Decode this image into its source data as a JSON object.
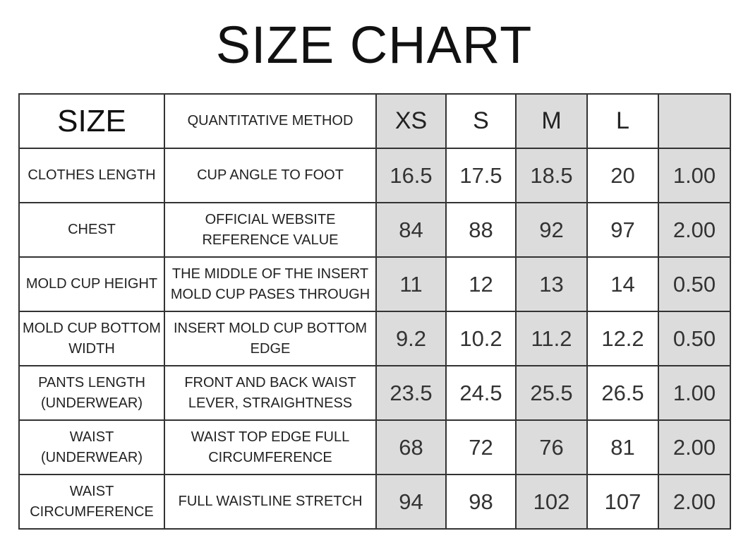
{
  "title": "SIZE CHART",
  "header": {
    "size_label": "SIZE",
    "method_label": "QUANTITATIVE METHOD",
    "sizes": [
      "XS",
      "S",
      "M",
      "L",
      ""
    ]
  },
  "rows": [
    {
      "label": "CLOTHES LENGTH",
      "method": "CUP ANGLE TO FOOT",
      "values": [
        "16.5",
        "17.5",
        "18.5",
        "20",
        "1.00"
      ]
    },
    {
      "label": "CHEST",
      "method": "OFFICIAL WEBSITE REFERENCE VALUE",
      "values": [
        "84",
        "88",
        "92",
        "97",
        "2.00"
      ]
    },
    {
      "label": "MOLD CUP HEIGHT",
      "method": "THE MIDDLE OF THE INSERT MOLD CUP PASES THROUGH",
      "values": [
        "11",
        "12",
        "13",
        "14",
        "0.50"
      ]
    },
    {
      "label": "MOLD CUP BOTTOM WIDTH",
      "method": "INSERT MOLD CUP BOTTOM EDGE",
      "values": [
        "9.2",
        "10.2",
        "11.2",
        "12.2",
        "0.50"
      ]
    },
    {
      "label": "PANTS LENGTH (UNDERWEAR)",
      "method": "FRONT AND BACK WAIST LEVER, STRAIGHTNESS",
      "values": [
        "23.5",
        "24.5",
        "25.5",
        "26.5",
        "1.00"
      ]
    },
    {
      "label": "WAIST (UNDERWEAR)",
      "method": "WAIST TOP EDGE FULL CIRCUMFERENCE",
      "values": [
        "68",
        "72",
        "76",
        "81",
        "2.00"
      ]
    },
    {
      "label": "WAIST CIRCUMFERENCE",
      "method": "FULL WAISTLINE STRETCH",
      "values": [
        "94",
        "98",
        "102",
        "107",
        "2.00"
      ]
    }
  ],
  "colors": {
    "shaded_column": "#dcdcdc",
    "border": "#333333"
  }
}
